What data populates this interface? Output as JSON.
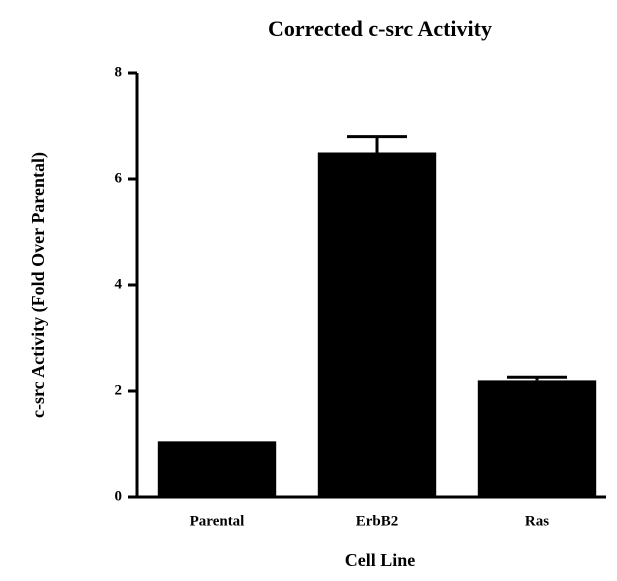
{
  "chart_data": {
    "type": "bar",
    "title": "Corrected c-src Activity",
    "xlabel": "Cell Line",
    "ylabel": "c-src Activity (Fold Over Parental)",
    "categories": [
      "Parental",
      "ErbB2",
      "Ras"
    ],
    "values": [
      1.05,
      6.5,
      2.2
    ],
    "errors": [
      null,
      0.3,
      0.06
    ],
    "color": "#000000",
    "ylim": [
      0,
      8
    ],
    "yticks": [
      0,
      2,
      4,
      6,
      8
    ],
    "grid": false
  }
}
